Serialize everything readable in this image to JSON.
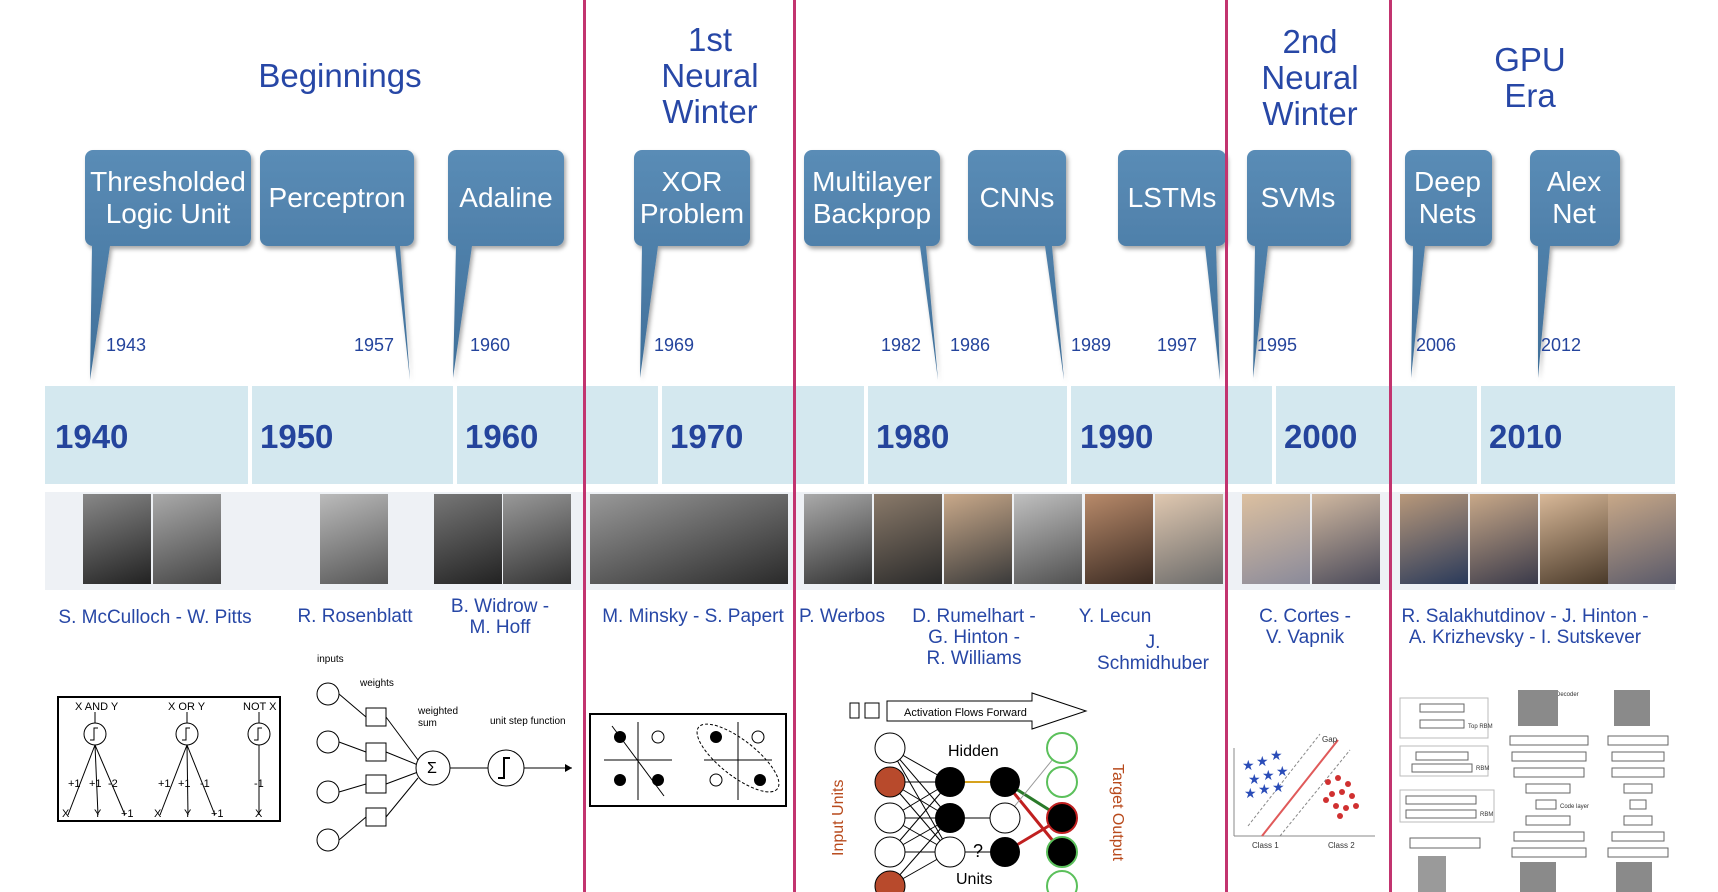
{
  "eras": {
    "beginnings": "Beginnings",
    "first_winter": [
      "1st",
      "Neural",
      "Winter"
    ],
    "second_winter": [
      "2nd",
      "Neural",
      "Winter"
    ],
    "gpu_era": [
      "GPU",
      "Era"
    ]
  },
  "milestones": {
    "tlu": [
      "Thresholded",
      "Logic Unit"
    ],
    "perceptron": "Perceptron",
    "adaline": "Adaline",
    "xor": [
      "XOR",
      "Problem"
    ],
    "backprop": [
      "Multilayer",
      "Backprop"
    ],
    "cnns": "CNNs",
    "lstms": "LSTMs",
    "svms": "SVMs",
    "deepnets": [
      "Deep",
      "Nets"
    ],
    "alexnet": [
      "Alex",
      "Net"
    ]
  },
  "years": [
    "1943",
    "1957",
    "1960",
    "1969",
    "1982",
    "1986",
    "1989",
    "1997",
    "1995",
    "2006",
    "2012"
  ],
  "decades": [
    "1940",
    "1950",
    "1960",
    "1970",
    "1980",
    "1990",
    "2000",
    "2010"
  ],
  "people": {
    "mcculloch_pitts": "S. McCulloch - W. Pitts",
    "rosenblatt": "R. Rosenblatt",
    "widrow_hoff": [
      "B. Widrow -",
      "M. Hoff"
    ],
    "minsky_papert": "M. Minsky - S. Papert",
    "werbos": "P. Werbos",
    "rumelhart": [
      "D. Rumelhart -",
      "G. Hinton -",
      "R. Williams"
    ],
    "lecun": "Y. Lecun",
    "schmidhuber": "J. Schmidhuber",
    "cortes_vapnik": [
      "C. Cortes -",
      "V. Vapnik"
    ],
    "gpu_people": [
      "R. Salakhutdinov - J. Hinton -",
      "A. Krizhevsky - I. Sutskever"
    ]
  },
  "diagrams": {
    "logic": {
      "and": "X AND Y",
      "or": "X OR Y",
      "not": "NOT X",
      "x": "X",
      "y": "Y",
      "p1": "+1",
      "m2": "-2",
      "m1": "-1"
    },
    "perceptron": {
      "inputs": "inputs",
      "weights": "weights",
      "weighted_sum": "weighted",
      "sum": "sum",
      "step": "unit step function"
    },
    "backprop": {
      "flow": "Activation Flows Forward",
      "hidden": "Hidden",
      "units": "Units",
      "input_units": "Input Units",
      "target": "Target Output"
    },
    "svm": {
      "gap": "Gap",
      "class1": "Class 1",
      "class2": "Class 2"
    },
    "dbn": {
      "decoder": "Decoder",
      "code_layer": "Code layer",
      "rbm": "RBM",
      "top_rbm": "Top RBM"
    }
  },
  "colors": {
    "accent": "#c2346f",
    "callout": "#4d7ea8",
    "text": "#2747a6",
    "band": "#d4e8ef"
  }
}
